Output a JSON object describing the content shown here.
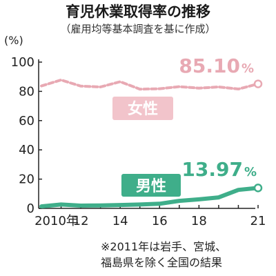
{
  "chart_data": {
    "type": "line",
    "title": "育児休業取得率の推移",
    "subtitle": "（雇用均等基本調査を基に作成）",
    "unit": "(%)",
    "x": [
      2010,
      2011,
      2012,
      2013,
      2014,
      2015,
      2016,
      2017,
      2018,
      2019,
      2020,
      2021
    ],
    "x_tick_labels": [
      "2010年",
      "12",
      "14",
      "16",
      "18",
      "21"
    ],
    "x_tick_values": [
      2010,
      2012,
      2014,
      2016,
      2018,
      2021
    ],
    "y_ticks": [
      0,
      20,
      40,
      60,
      80,
      100
    ],
    "ylim": [
      0,
      100
    ],
    "series": [
      {
        "name": "女性",
        "color": "#e8a9b3",
        "values": [
          83.7,
          87.8,
          83.6,
          83.0,
          86.6,
          81.5,
          81.8,
          83.2,
          82.2,
          83.0,
          81.6,
          85.1
        ],
        "end_value_label": "85.10",
        "end_value_unit": "%"
      },
      {
        "name": "男性",
        "color": "#3fae8a",
        "values": [
          1.38,
          2.63,
          1.89,
          2.03,
          2.3,
          2.65,
          3.16,
          5.14,
          6.16,
          7.48,
          12.65,
          13.97
        ],
        "end_value_label": "13.97",
        "end_value_unit": "%"
      }
    ],
    "notes": [
      "※2011年は岩手、宮城、",
      "福島県を除く全国の結果"
    ]
  }
}
